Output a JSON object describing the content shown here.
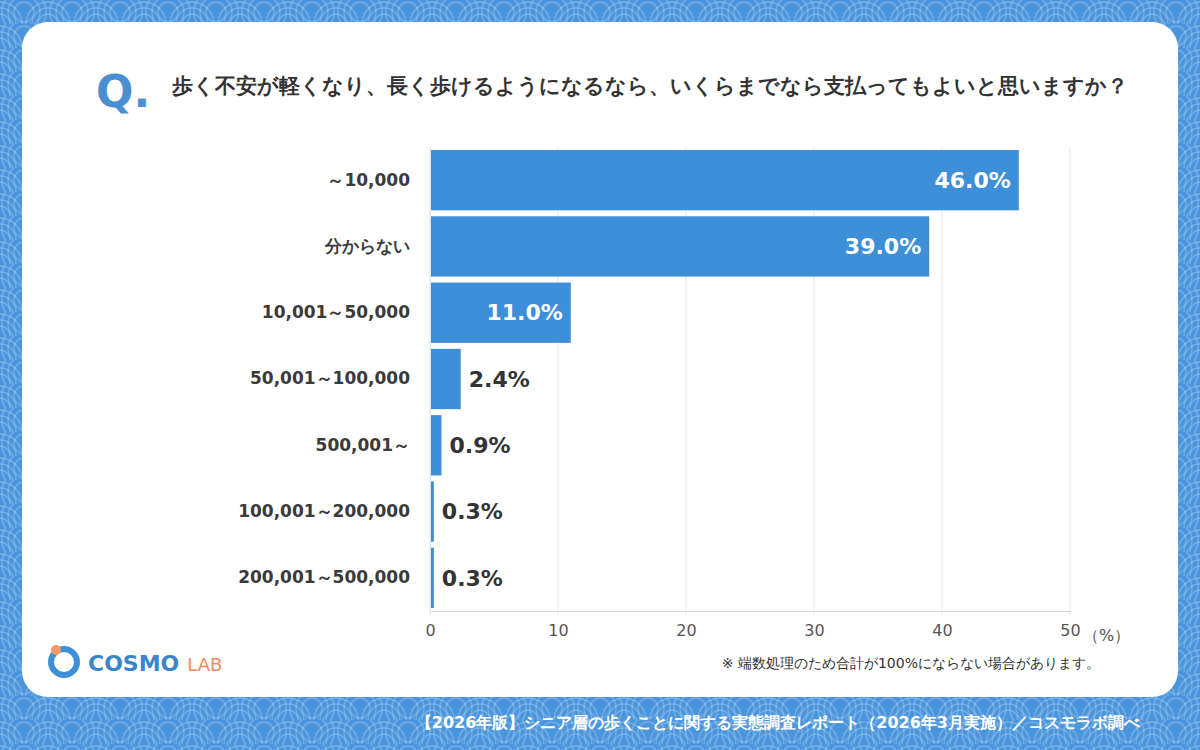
{
  "chart_data": {
    "type": "bar",
    "orientation": "horizontal",
    "title": "歩く不安が軽くなり、長く歩けるようになるなら、いくらまでなら支払ってもよいと思いますか？",
    "annotations": {
      "q_label": "Q.",
      "note": "※ 端数処理のため合計が100%にならない場合があります。",
      "source": "【2026年版】シニア層の歩くことに関する実態調査レポート（2026年3月実施）／コスモラボ調べ",
      "logo": [
        "COSMO",
        "LAB"
      ]
    },
    "x_label": "（%）",
    "categories": [
      "～10,000",
      "分からない",
      "10,001～50,000",
      "50,001～100,000",
      "500,001～",
      "100,001～200,000",
      "200,001～500,000"
    ],
    "values": [
      46.0,
      39.0,
      11.0,
      2.4,
      0.9,
      0.3,
      0.3
    ],
    "value_labels": [
      "46.0%",
      "39.0%",
      "11.0%",
      "2.4%",
      "0.9%",
      "0.3%",
      "0.3%"
    ],
    "color": "#3d8fd8",
    "xlim": [
      0,
      50
    ],
    "xticks": [
      0,
      10,
      20,
      30,
      40,
      50
    ],
    "grid": true,
    "data_labels": true
  }
}
